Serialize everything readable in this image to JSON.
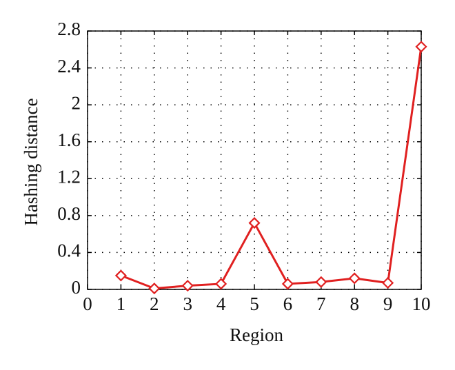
{
  "chart_data": {
    "type": "line",
    "x_label": "Region",
    "y_label": "Hashing distance",
    "x": [
      1,
      2,
      3,
      4,
      5,
      6,
      7,
      8,
      9,
      10
    ],
    "series": [
      {
        "color": "#e02020",
        "values": [
          0.15,
          0.01,
          0.04,
          0.06,
          0.72,
          0.06,
          0.08,
          0.12,
          0.07,
          2.63
        ]
      }
    ],
    "xlim": [
      0,
      10
    ],
    "xticks": [
      0,
      1,
      2,
      3,
      4,
      5,
      6,
      7,
      8,
      9,
      10
    ],
    "ylim": [
      0,
      2.8
    ],
    "yticks": [
      0,
      0.4,
      0.8,
      1.2,
      1.6,
      2,
      2.4,
      2.8
    ],
    "grid": true
  }
}
